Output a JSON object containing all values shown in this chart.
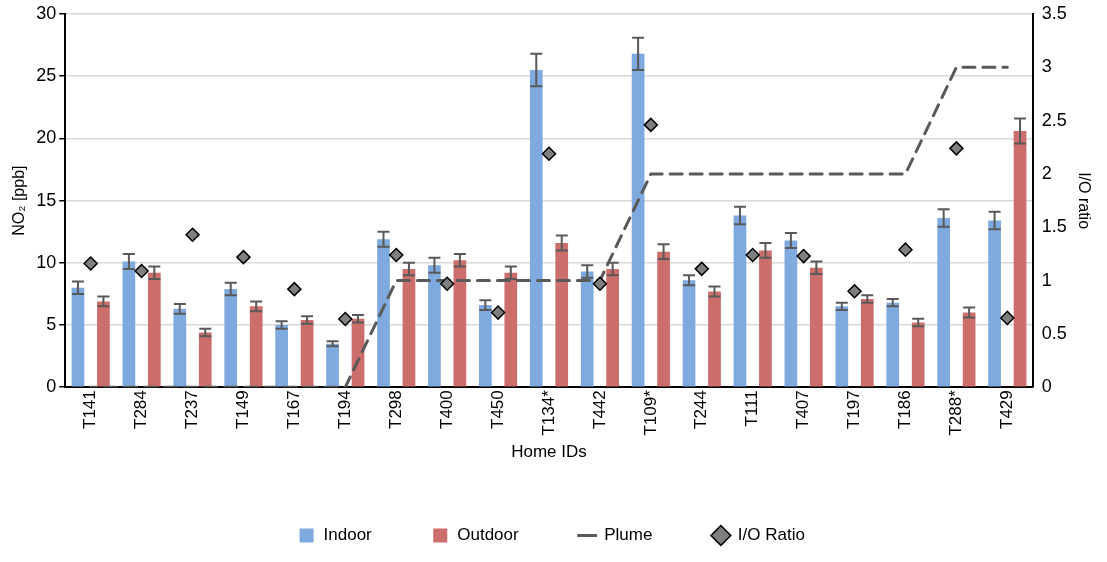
{
  "chart_data": {
    "type": "bar",
    "xlabel": "Home IDs",
    "ylabel": "NO₂ [ppb]",
    "y2label": "I/O ratio",
    "categories": [
      "T141",
      "T284",
      "T237",
      "T149",
      "T167",
      "T194",
      "T298",
      "T400",
      "T450",
      "T134*",
      "T442",
      "T109*",
      "T244",
      "T111",
      "T407",
      "T197",
      "T186",
      "T288*",
      "T429"
    ],
    "series": [
      {
        "name": "Indoor",
        "color": "#7faadf",
        "values": [
          8.0,
          10.1,
          6.3,
          7.9,
          5.0,
          3.5,
          11.9,
          9.8,
          6.6,
          25.5,
          9.3,
          26.8,
          8.6,
          13.8,
          11.8,
          6.5,
          6.8,
          13.6,
          13.4
        ],
        "errors": [
          0.5,
          0.6,
          0.4,
          0.5,
          0.3,
          0.2,
          0.6,
          0.6,
          0.4,
          1.3,
          0.5,
          1.3,
          0.4,
          0.7,
          0.6,
          0.3,
          0.3,
          0.7,
          0.7
        ]
      },
      {
        "name": "Outdoor",
        "color": "#cc6e6b",
        "values": [
          6.9,
          9.2,
          4.4,
          6.5,
          5.4,
          5.5,
          9.5,
          10.2,
          9.2,
          11.6,
          9.5,
          10.9,
          7.7,
          11.0,
          9.6,
          7.1,
          5.2,
          6.0,
          20.6
        ],
        "errors": [
          0.4,
          0.5,
          0.3,
          0.4,
          0.3,
          0.3,
          0.5,
          0.5,
          0.5,
          0.6,
          0.5,
          0.6,
          0.4,
          0.6,
          0.5,
          0.3,
          0.3,
          0.4,
          1.0
        ]
      },
      {
        "name": "Plume",
        "type": "line",
        "axis": "y2",
        "color": "#595959",
        "line_style": "dashed",
        "marker": "none",
        "values": [
          0,
          0,
          0,
          0,
          0,
          0,
          1,
          1,
          1,
          1,
          1,
          2,
          2,
          2,
          2,
          2,
          2,
          3,
          3
        ]
      },
      {
        "name": "I/O Ratio",
        "type": "scatter",
        "axis": "y2",
        "color": "#7f7f7f",
        "marker": "diamond",
        "values": [
          1.16,
          1.09,
          1.43,
          1.22,
          0.92,
          0.64,
          1.24,
          0.97,
          0.7,
          2.19,
          0.97,
          2.46,
          1.11,
          1.24,
          1.23,
          0.9,
          1.29,
          2.24,
          0.65
        ]
      }
    ],
    "ylim": [
      0,
      30
    ],
    "yticks": [
      0,
      5,
      10,
      15,
      20,
      25,
      30
    ],
    "y2lim": [
      0,
      3.5
    ],
    "y2ticks": [
      0,
      0.5,
      1,
      1.5,
      2,
      2.5,
      3,
      3.5
    ],
    "grid": "y",
    "legend": "bottom"
  }
}
